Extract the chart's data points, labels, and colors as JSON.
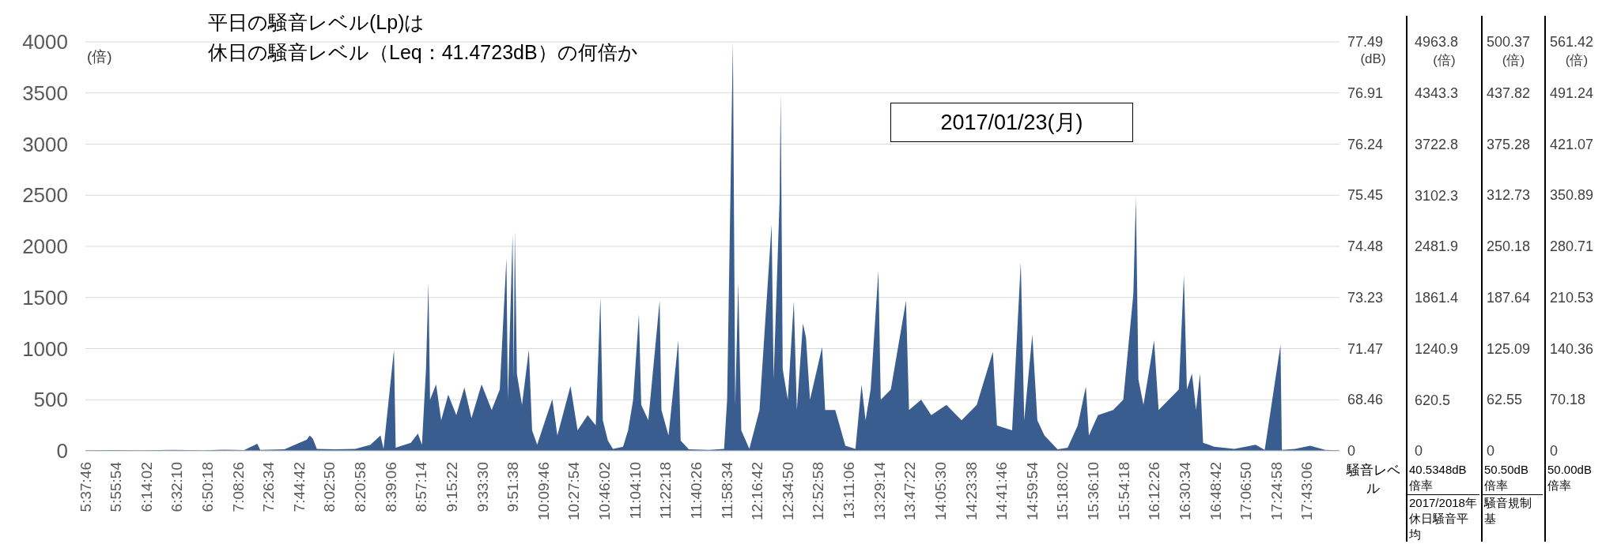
{
  "chart_data": {
    "type": "area",
    "title": "平日の騒音レベル(Lp)は",
    "subtitle": "休日の騒音レベル（Leq：41.4723dB）の何倍か",
    "ylabel": "(倍)",
    "y2label": "(倍)",
    "annotations": [
      "2017/01/23(月)",
      "77.49",
      "76.91",
      "76.24",
      "75.45",
      "74.48",
      "73.23",
      "71.47",
      "68.46",
      "0",
      "(dB)",
      "561.42",
      "491.24",
      "421.07",
      "350.89",
      "280.71",
      "210.53",
      "140.36",
      "70.18",
      "0",
      "(倍)",
      "騒音レベル",
      "40.5348dB 倍率",
      "2017/2018年休日騒音平均",
      "50.50dB 倍率",
      "騒音規制基",
      "50.00dB 倍率",
      "500.37",
      "437.82",
      "375.28",
      "312.73",
      "250.18",
      "187.64",
      "125.09",
      "62.55",
      "0",
      "(倍)"
    ],
    "color": "#3a5d8f",
    "x": [
      5.63,
      5.9,
      6.2,
      6.5,
      6.8,
      7.0,
      7.2,
      7.33,
      7.36,
      7.6,
      7.82,
      7.85,
      7.88,
      7.92,
      8.1,
      8.3,
      8.45,
      8.55,
      8.58,
      8.683,
      8.7,
      8.85,
      8.92,
      8.96,
      9.0,
      9.024,
      9.04,
      9.1,
      9.15,
      9.22,
      9.3,
      9.38,
      9.45,
      9.55,
      9.65,
      9.73,
      9.796,
      9.81,
      9.857,
      9.868,
      9.879,
      9.9,
      9.95,
      10.018,
      10.05,
      10.1,
      10.18,
      10.25,
      10.3,
      10.43,
      10.5,
      10.6,
      10.68,
      10.726,
      10.75,
      10.8,
      10.85,
      10.95,
      11.0,
      11.05,
      11.107,
      11.13,
      11.2,
      11.312,
      11.33,
      11.4,
      11.497,
      11.52,
      11.6,
      11.8,
      11.95,
      11.98,
      12.037,
      12.06,
      12.09,
      12.12,
      12.2,
      12.3,
      12.42,
      12.44,
      12.5,
      12.51,
      12.53,
      12.58,
      12.64,
      12.67,
      12.73,
      12.76,
      12.8,
      12.92,
      12.95,
      13.05,
      13.15,
      13.25,
      13.31,
      13.35,
      13.4,
      13.477,
      13.5,
      13.6,
      13.75,
      13.78,
      13.9,
      14.0,
      14.15,
      14.3,
      14.45,
      14.61,
      14.65,
      14.8,
      14.886,
      14.92,
      15.0,
      15.05,
      15.12,
      15.25,
      15.35,
      15.45,
      15.53,
      15.56,
      15.65,
      15.8,
      15.9,
      16.0,
      16.025,
      16.05,
      16.1,
      16.205,
      16.25,
      16.35,
      16.45,
      16.5,
      16.53,
      16.58,
      16.62,
      16.66,
      16.69,
      16.8,
      17.0,
      17.21,
      17.3,
      17.456,
      17.47,
      17.6,
      17.75,
      17.9,
      18.04
    ],
    "values": [
      5,
      8,
      5,
      10,
      6,
      12,
      8,
      70,
      10,
      15,
      110,
      150,
      120,
      20,
      15,
      20,
      60,
      150,
      20,
      990,
      30,
      80,
      170,
      60,
      800,
      1645,
      500,
      650,
      300,
      550,
      350,
      620,
      320,
      650,
      400,
      600,
      1887,
      500,
      2114,
      700,
      2159,
      750,
      450,
      990,
      200,
      60,
      300,
      506,
      150,
      635,
      200,
      350,
      250,
      1500,
      300,
      100,
      20,
      40,
      200,
      500,
      1335,
      450,
      300,
      1467,
      400,
      150,
      1082,
      100,
      15,
      10,
      20,
      500,
      4000,
      450,
      1647,
      200,
      20,
      400,
      2215,
      700,
      2483,
      3495,
      800,
      500,
      1463,
      400,
      1245,
      1110,
      500,
      1016,
      400,
      400,
      50,
      20,
      647,
      300,
      600,
      1760,
      500,
      600,
      1468,
      400,
      500,
      350,
      450,
      300,
      450,
      970,
      250,
      200,
      1842,
      300,
      1137,
      300,
      150,
      15,
      30,
      250,
      630,
      150,
      350,
      400,
      500,
      1534,
      2476,
      700,
      450,
      1082,
      400,
      500,
      600,
      1718,
      600,
      757,
      400,
      757,
      80,
      40,
      20,
      60,
      10,
      1034,
      10,
      20,
      50,
      10,
      5
    ],
    "xlim": [
      5.6294,
      18.04
    ],
    "xticks": [
      {
        "value": 5.6294,
        "label": "5:37:46"
      },
      {
        "value": 5.9317,
        "label": "5:55:54"
      },
      {
        "value": 6.2339,
        "label": "6:14:02"
      },
      {
        "value": 6.5361,
        "label": "6:32:10"
      },
      {
        "value": 6.8383,
        "label": "6:50:18"
      },
      {
        "value": 7.1406,
        "label": "7:08:26"
      },
      {
        "value": 7.4428,
        "label": "7:26:34"
      },
      {
        "value": 7.745,
        "label": "7:44:42"
      },
      {
        "value": 8.0472,
        "label": "8:02:50"
      },
      {
        "value": 8.3494,
        "label": "8:20:58"
      },
      {
        "value": 8.6517,
        "label": "8:39:06"
      },
      {
        "value": 8.9539,
        "label": "8:57:14"
      },
      {
        "value": 9.2561,
        "label": "9:15:22"
      },
      {
        "value": 9.5583,
        "label": "9:33:30"
      },
      {
        "value": 9.8606,
        "label": "9:51:38"
      },
      {
        "value": 10.1628,
        "label": "10:09:46"
      },
      {
        "value": 10.465,
        "label": "10:27:54"
      },
      {
        "value": 10.7672,
        "label": "10:46:02"
      },
      {
        "value": 11.0694,
        "label": "11:04:10"
      },
      {
        "value": 11.3717,
        "label": "11:22:18"
      },
      {
        "value": 11.6739,
        "label": "11:40:26"
      },
      {
        "value": 11.9761,
        "label": "11:58:34"
      },
      {
        "value": 12.2783,
        "label": "12:16:42"
      },
      {
        "value": 12.5806,
        "label": "12:34:50"
      },
      {
        "value": 12.8828,
        "label": "12:52:58"
      },
      {
        "value": 13.185,
        "label": "13:11:06"
      },
      {
        "value": 13.4872,
        "label": "13:29:14"
      },
      {
        "value": 13.7894,
        "label": "13:47:22"
      },
      {
        "value": 14.0917,
        "label": "14:05:30"
      },
      {
        "value": 14.3939,
        "label": "14:23:38"
      },
      {
        "value": 14.6961,
        "label": "14:41:46"
      },
      {
        "value": 14.9983,
        "label": "14:59:54"
      },
      {
        "value": 15.3006,
        "label": "15:18:02"
      },
      {
        "value": 15.6028,
        "label": "15:36:10"
      },
      {
        "value": 15.905,
        "label": "15:54:18"
      },
      {
        "value": 16.2072,
        "label": "16:12:26"
      },
      {
        "value": 16.5094,
        "label": "16:30:34"
      },
      {
        "value": 16.8117,
        "label": "16:48:42"
      },
      {
        "value": 17.1139,
        "label": "17:06:50"
      },
      {
        "value": 17.4161,
        "label": "17:24:58"
      },
      {
        "value": 17.7183,
        "label": "17:43:06"
      }
    ],
    "ylim": [
      0,
      4000
    ],
    "yticks": [
      0,
      500,
      1000,
      1500,
      2000,
      2500,
      3000,
      3500,
      4000
    ],
    "y2lim": [
      0,
      4963.8
    ],
    "y2ticks": [
      0,
      620.5,
      1240.9,
      1861.4,
      2481.9,
      3102.3,
      3722.8,
      4343.3,
      4963.8
    ],
    "grid": "y"
  }
}
